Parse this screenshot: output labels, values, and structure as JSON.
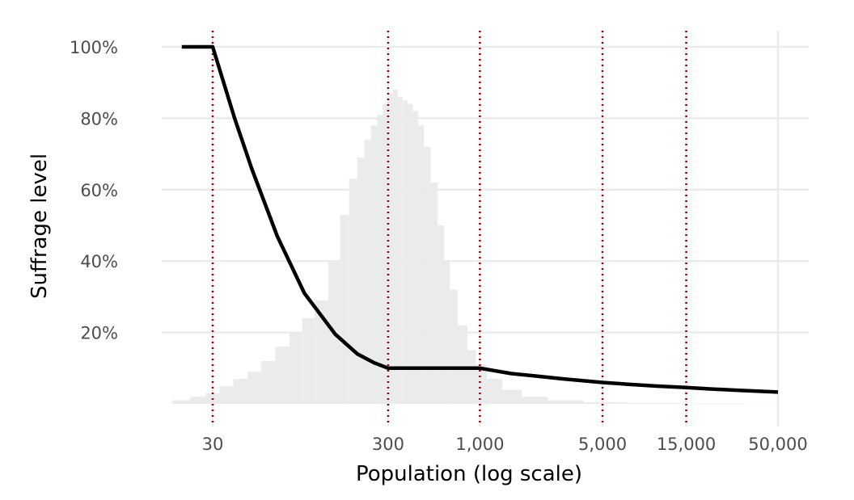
{
  "chart_data": {
    "type": "line",
    "title": "",
    "xlabel": "Population (log scale)",
    "ylabel": "Suffrage level",
    "x_scale": "log",
    "xlim": [
      12,
      50000
    ],
    "ylim": [
      0,
      100
    ],
    "x_ticks": [
      {
        "value": 30,
        "label": "30"
      },
      {
        "value": 300,
        "label": "300"
      },
      {
        "value": 1000,
        "label": "1,000"
      },
      {
        "value": 5000,
        "label": "5,000"
      },
      {
        "value": 15000,
        "label": "15,000"
      },
      {
        "value": 50000,
        "label": "50,000"
      }
    ],
    "y_ticks": [
      {
        "value": 20,
        "label": "20%"
      },
      {
        "value": 40,
        "label": "40%"
      },
      {
        "value": 60,
        "label": "60%"
      },
      {
        "value": 80,
        "label": "80%"
      },
      {
        "value": 100,
        "label": "100%"
      }
    ],
    "grid": true,
    "legend": "none",
    "reference_lines": {
      "x": [
        30,
        300,
        1000,
        5000,
        15000
      ],
      "color": "#8b0000",
      "style": "dotted"
    },
    "series": [
      {
        "color": "#000000",
        "x": [
          20,
          30,
          40,
          50,
          70,
          100,
          150,
          200,
          250,
          300,
          400,
          500,
          600,
          800,
          1000,
          1500,
          2000,
          3000,
          5000,
          7000,
          10000,
          15000,
          20000,
          30000,
          50000
        ],
        "y": [
          100,
          100,
          80,
          66,
          47,
          31,
          19.5,
          14,
          11.5,
          10,
          10,
          10,
          10,
          10,
          10,
          8.5,
          7.9,
          7.0,
          6.0,
          5.5,
          5.0,
          4.6,
          4.2,
          3.8,
          3.3
        ]
      }
    ],
    "histogram": {
      "color": "#ebebeb",
      "x": [
        20,
        25,
        30,
        36,
        43,
        52,
        62,
        75,
        90,
        105,
        125,
        150,
        170,
        190,
        210,
        230,
        250,
        270,
        290,
        310,
        330,
        350,
        375,
        400,
        430,
        460,
        500,
        550,
        600,
        650,
        700,
        800,
        900,
        1000,
        1200,
        1500,
        2000,
        3000,
        5000,
        10000,
        20000,
        50000
      ],
      "y": [
        1,
        2,
        3,
        5,
        7,
        9,
        12,
        16,
        20,
        24,
        29,
        40,
        53,
        63,
        69,
        74,
        78,
        81,
        84,
        87,
        88,
        86,
        85,
        84,
        82,
        78,
        72,
        62,
        50,
        40,
        32,
        22,
        15,
        11,
        7,
        4,
        2,
        1,
        0.5,
        0.2,
        0.1,
        0.05
      ]
    }
  }
}
